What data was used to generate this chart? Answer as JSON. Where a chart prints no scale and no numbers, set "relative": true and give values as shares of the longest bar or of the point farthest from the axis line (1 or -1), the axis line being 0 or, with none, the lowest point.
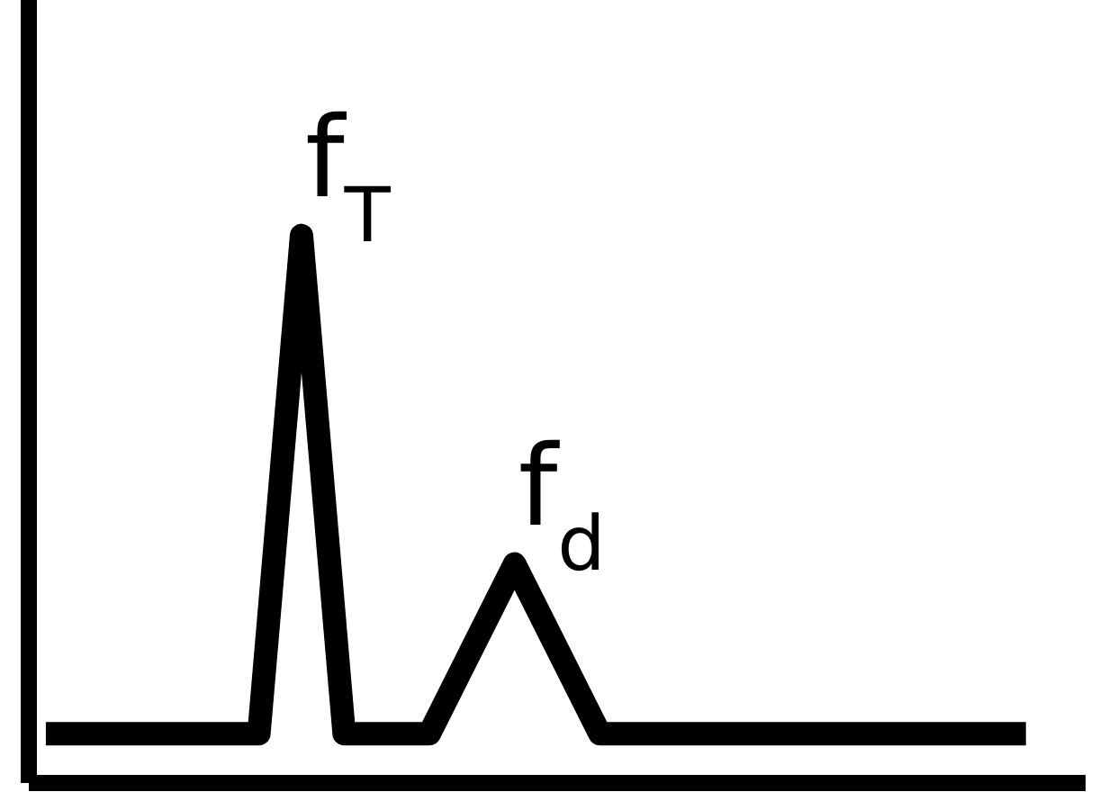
{
  "chart_data": {
    "type": "line",
    "relative": true,
    "color": "#000000",
    "marker": "none",
    "line_style": "solid",
    "grid": false,
    "legend": false,
    "categories": [
      null,
      null,
      null,
      null,
      null,
      null,
      null,
      null,
      null,
      null,
      null,
      null,
      null,
      null,
      null,
      null,
      null,
      null,
      null,
      null,
      null,
      null,
      null,
      null
    ],
    "values": [
      0.09,
      0.09,
      0.09,
      0.09,
      0.09,
      0.09,
      1,
      0.09,
      0.09,
      0.09,
      0.245,
      0.4,
      0.245,
      0.09,
      0.09,
      0.09,
      0.09,
      0.09,
      0.09,
      0.09,
      0.09,
      0.09,
      0.09,
      0.09
    ],
    "annotations": [
      "f$_{T}$",
      "f$_{d}$"
    ]
  }
}
